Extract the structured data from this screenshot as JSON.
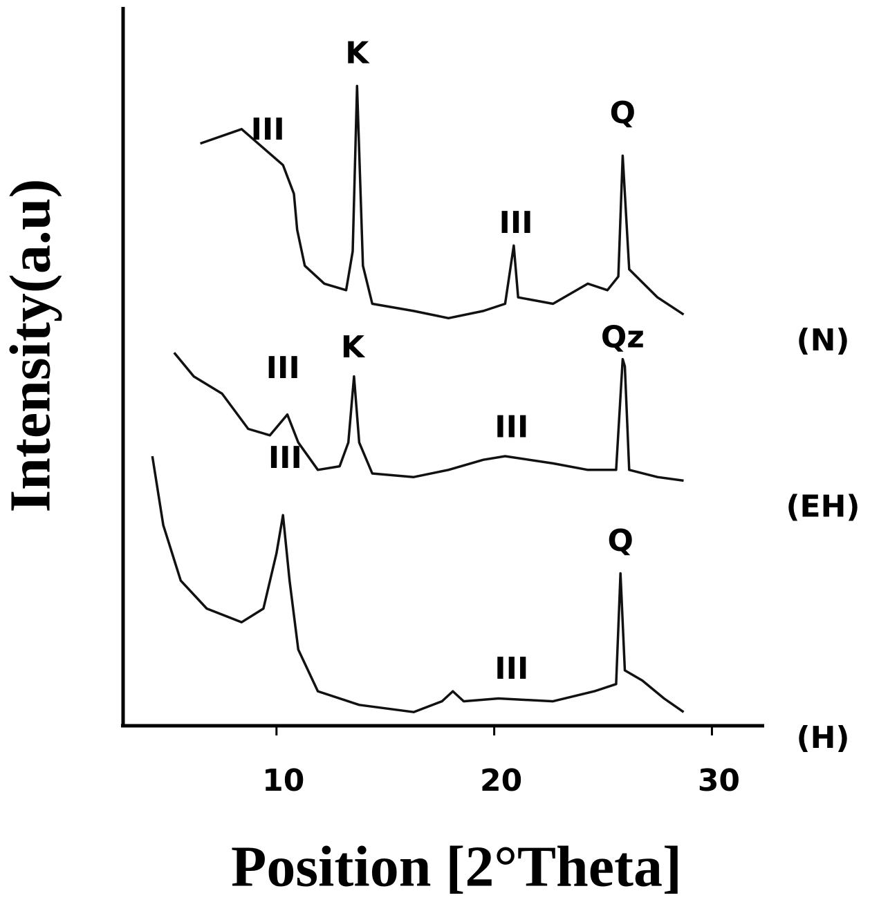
{
  "chart_data": {
    "type": "line",
    "x_label": "Position [2°Theta]",
    "y_label": "Intensity(a.u)",
    "xlim": [
      2.86,
      32.4
    ],
    "ylim": [
      0,
      100
    ],
    "xticks": [
      10,
      20,
      30
    ],
    "color": "#111111",
    "series": [
      {
        "name": "(N)",
        "color": "#111111",
        "x": [
          6.5,
          8.4,
          10.3,
          10.8,
          10.95,
          11.3,
          12.2,
          13.2,
          13.5,
          13.7,
          13.97,
          14.4,
          16.3,
          17.9,
          19.5,
          20.5,
          20.9,
          21.1,
          22.7,
          24.3,
          25.2,
          25.7,
          25.9,
          26.2,
          27.5,
          28.7
        ],
        "values": [
          81,
          83,
          78,
          74,
          69,
          64,
          61.5,
          60.6,
          66,
          89,
          64,
          58.7,
          57.7,
          56.7,
          57.7,
          58.7,
          66.8,
          59.6,
          58.7,
          61.5,
          60.6,
          62.5,
          79.3,
          63.5,
          59.6,
          57.2
        ]
      },
      {
        "name": "(EH)",
        "color": "#111111",
        "x": [
          5.3,
          6.2,
          7.5,
          8.7,
          9.7,
          10.5,
          11.0,
          11.9,
          12.9,
          13.3,
          13.56,
          13.8,
          14.4,
          16.3,
          17.9,
          19.5,
          20.5,
          22.7,
          24.3,
          25.6,
          25.9,
          26.0,
          26.2,
          27.5,
          28.7
        ],
        "values": [
          51.9,
          48.6,
          46.2,
          41.3,
          40.4,
          43.3,
          39.4,
          35.6,
          36.1,
          39.4,
          48.6,
          39.4,
          35.1,
          34.6,
          35.6,
          37,
          37.5,
          36.5,
          35.6,
          35.6,
          51,
          50,
          35.6,
          34.6,
          34.1
        ]
      },
      {
        "name": "(H)",
        "color": "#111111",
        "x": [
          4.3,
          4.8,
          5.6,
          6.8,
          8.4,
          9.4,
          10.0,
          10.3,
          10.6,
          11.0,
          11.9,
          13.8,
          16.3,
          17.6,
          18.1,
          18.6,
          20.2,
          22.7,
          24.6,
          25.6,
          25.8,
          26.0,
          26.8,
          27.8,
          28.7
        ],
        "values": [
          37.5,
          27.9,
          20.2,
          16.3,
          14.4,
          16.3,
          24,
          29.3,
          20.2,
          10.6,
          4.8,
          2.9,
          1.9,
          3.4,
          4.8,
          3.4,
          3.8,
          3.4,
          4.8,
          5.8,
          21.2,
          7.7,
          6.3,
          3.8,
          1.9
        ]
      }
    ],
    "annotations": [
      {
        "text": "III",
        "x": 9.6,
        "y": 82.7
      },
      {
        "text": "K",
        "x": 13.7,
        "y": 93.3
      },
      {
        "text": "III",
        "x": 21,
        "y": 69.7
      },
      {
        "text": "Q",
        "x": 25.9,
        "y": 85
      },
      {
        "text": "III",
        "x": 10.3,
        "y": 49.5
      },
      {
        "text": "K",
        "x": 13.5,
        "y": 52.4
      },
      {
        "text": "III",
        "x": 20.8,
        "y": 41.3
      },
      {
        "text": "Qz",
        "x": 25.9,
        "y": 53.8
      },
      {
        "text": "III",
        "x": 10.4,
        "y": 37
      },
      {
        "text": "III",
        "x": 20.8,
        "y": 7.7
      },
      {
        "text": "Q",
        "x": 25.8,
        "y": 25.5
      }
    ]
  }
}
